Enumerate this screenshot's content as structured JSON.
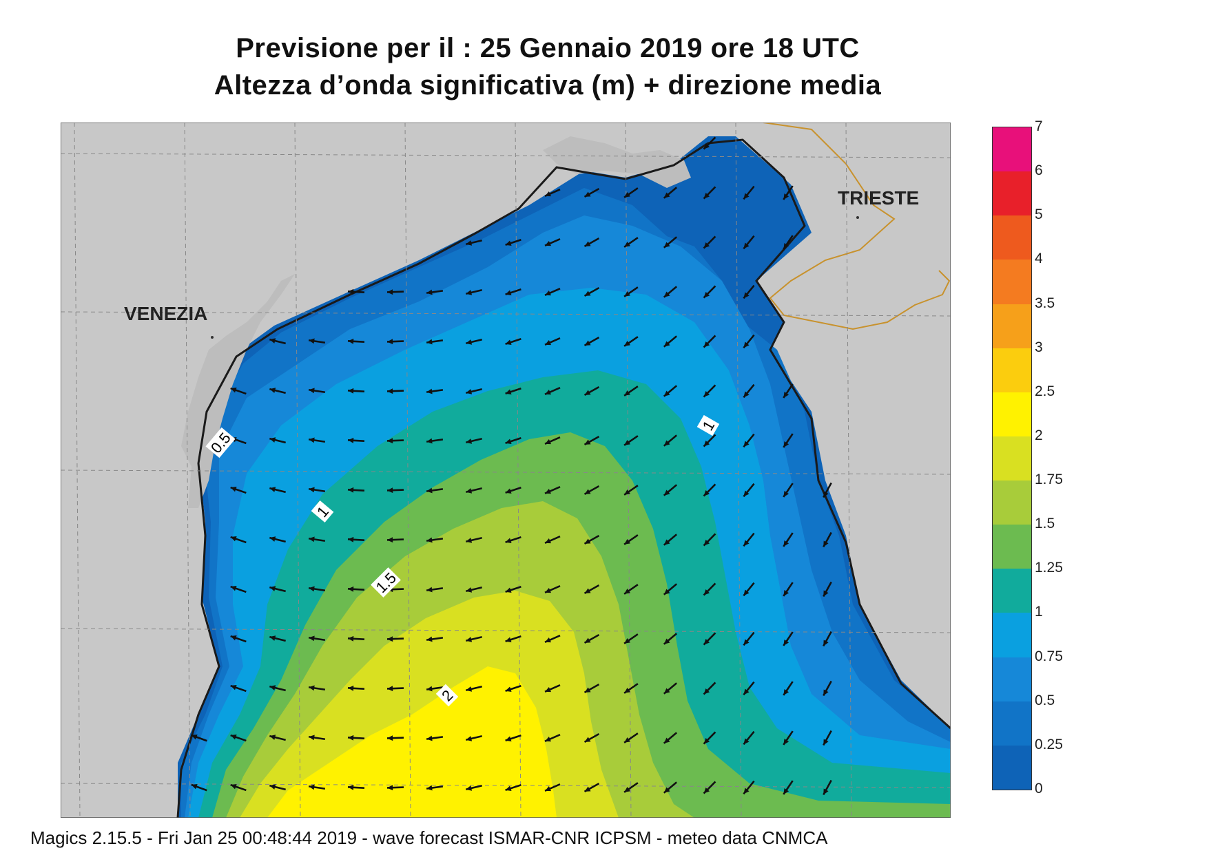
{
  "title_line1": "Previsione per il  :  25  Gennaio  2019   ore 18 UTC",
  "title_line2": "Altezza d’onda significativa (m) + direzione media",
  "cities": {
    "venezia": "VENEZIA",
    "trieste": "TRIESTE"
  },
  "contour_labels": [
    "0.5",
    "1",
    "1",
    "1.5",
    "2"
  ],
  "legend": {
    "ticks": [
      "7",
      "6",
      "5",
      "4",
      "3.5",
      "3",
      "2.5",
      "2",
      "1.75",
      "1.5",
      "1.25",
      "1",
      "0.75",
      "0.5",
      "0.25",
      "0"
    ],
    "colors": [
      "#e8107a",
      "#e8202a",
      "#ee5a1e",
      "#f47b20",
      "#f6a01a",
      "#fbcd0e",
      "#fff200",
      "#d9e021",
      "#a8cc3a",
      "#6cbb50",
      "#11ab9c",
      "#0aa0e0",
      "#1688d8",
      "#1174c7",
      "#0e63b7"
    ]
  },
  "map_colors": {
    "land": "#c8c8c8",
    "lagoon": "#bdbdbd",
    "coast": "#1a1a1a",
    "border": "#c8922d",
    "grid": "#888888"
  },
  "footer": "Magics 2.15.5 - Fri Jan 25 00:48:44 2019 - wave forecast  ISMAR-CNR  ICPSM - meteo data    CNMCA"
}
